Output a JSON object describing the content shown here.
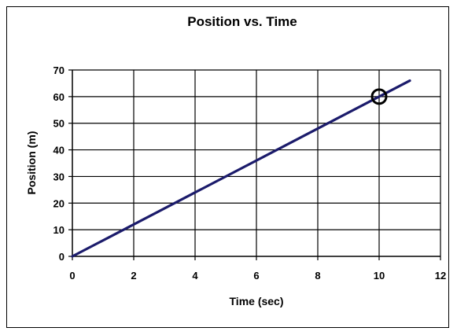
{
  "chart_data": {
    "type": "line",
    "title": "Position vs. Time",
    "xlabel": "Time (sec)",
    "ylabel": "Position (m)",
    "xlim": [
      0,
      12
    ],
    "ylim": [
      0,
      70
    ],
    "x_ticks": [
      0,
      2,
      4,
      6,
      8,
      10,
      12
    ],
    "y_ticks": [
      0,
      10,
      20,
      30,
      40,
      50,
      60,
      70
    ],
    "grid": true,
    "legend": "none",
    "series": [
      {
        "x": [
          0,
          11
        ],
        "y": [
          0,
          66
        ],
        "color": "#1b1b6b"
      }
    ],
    "annotations": [
      {
        "type": "circle-marker",
        "x": 10,
        "y": 60,
        "color": "#000000"
      }
    ]
  }
}
